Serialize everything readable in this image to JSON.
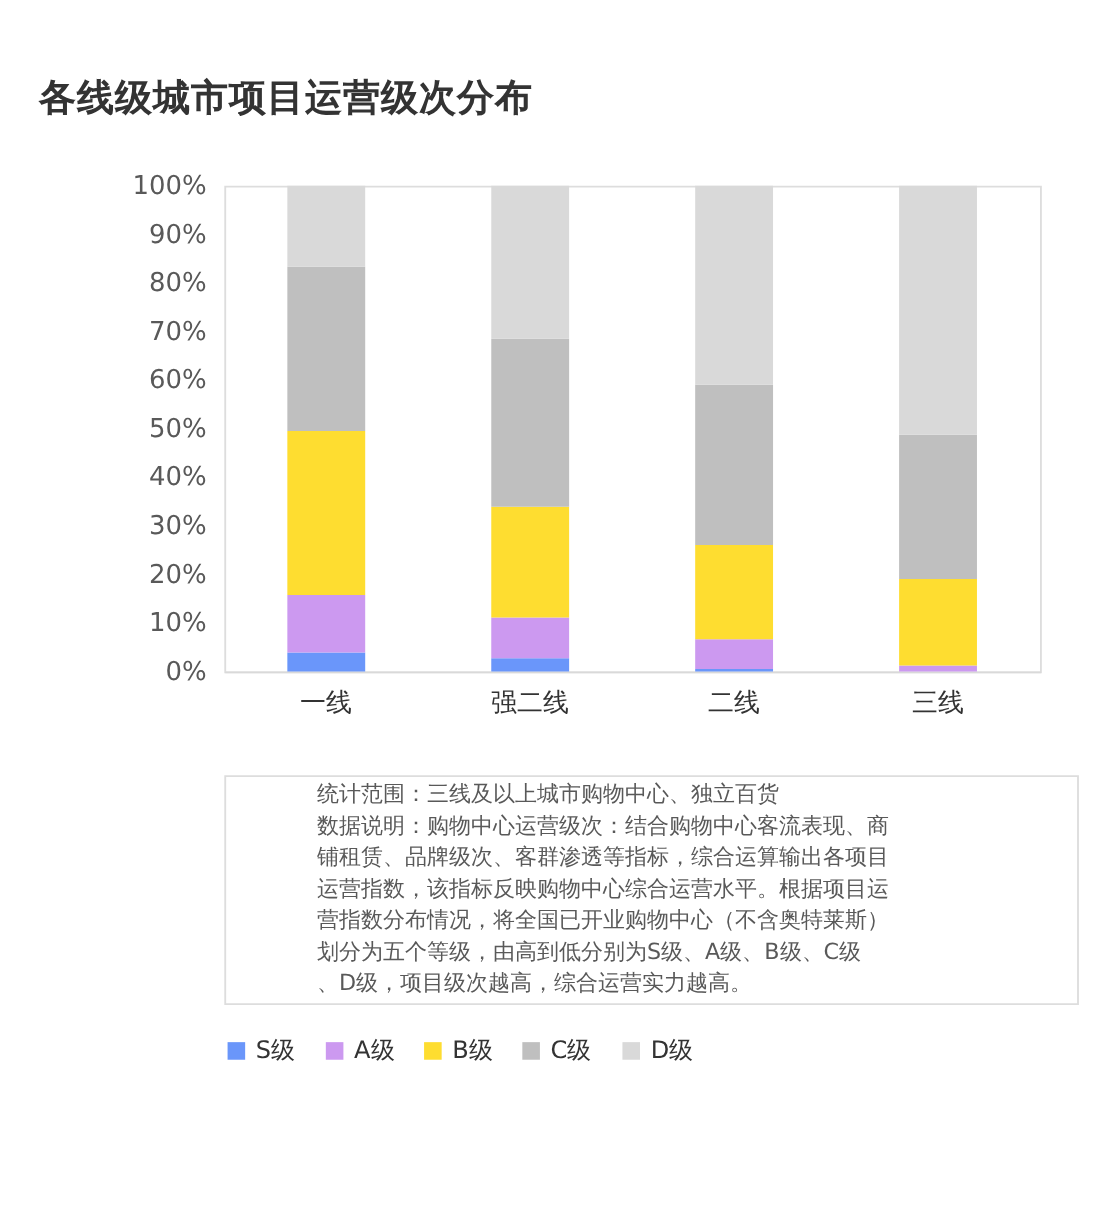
{
  "chart_data": {
    "type": "bar",
    "title": "各线级城市项目运营级次分布",
    "categories": [
      "一线",
      "强二线",
      "二线",
      "三线"
    ],
    "series": [
      {
        "name": "S级",
        "color": "#6a96fa",
        "values": [
          3.9,
          2.7,
          0.5,
          0
        ]
      },
      {
        "name": "A级",
        "color": "#cc99f0",
        "values": [
          11.8,
          8.4,
          6.1,
          1.2
        ]
      },
      {
        "name": "B级",
        "color": "#fedd30",
        "values": [
          33.8,
          22.8,
          19.4,
          17.8
        ]
      },
      {
        "name": "C级",
        "color": "#bfbfbf",
        "values": [
          33.8,
          34.6,
          33.0,
          29.7
        ]
      },
      {
        "name": "D级",
        "color": "#d9d9d9",
        "values": [
          16.7,
          31.5,
          41.0,
          51.3
        ]
      }
    ],
    "stacked": true,
    "ylim": [
      0,
      100
    ],
    "yticks": [
      {
        "value": 0,
        "label": "0%"
      },
      {
        "value": 10,
        "label": "10%"
      },
      {
        "value": 20,
        "label": "20%"
      },
      {
        "value": 30,
        "label": "30%"
      },
      {
        "value": 40,
        "label": "40%"
      },
      {
        "value": 50,
        "label": "50%"
      },
      {
        "value": 60,
        "label": "60%"
      },
      {
        "value": 70,
        "label": "70%"
      },
      {
        "value": 80,
        "label": "80%"
      },
      {
        "value": 90,
        "label": "90%"
      },
      {
        "value": 100,
        "label": "100%"
      }
    ],
    "grid": false,
    "legend": "bottom",
    "annotations": [
      "统计范围：三线及以上城市购物中心、独立百货",
      "数据说明：购物中心运营级次：结合购物中心客流表现、商铺租赁、品牌级次、客群渗透等指标，综合运算输出各项目运营指数，该指标反映购物中心综合运营水平。根据项目运营指数分布情况，将全国已开业购物中心（不含奥特莱斯）划分为五个等级，由高到低分别为S级、A级、B级、C级、D级，项目级次越高，综合运营实力越高。"
    ]
  }
}
